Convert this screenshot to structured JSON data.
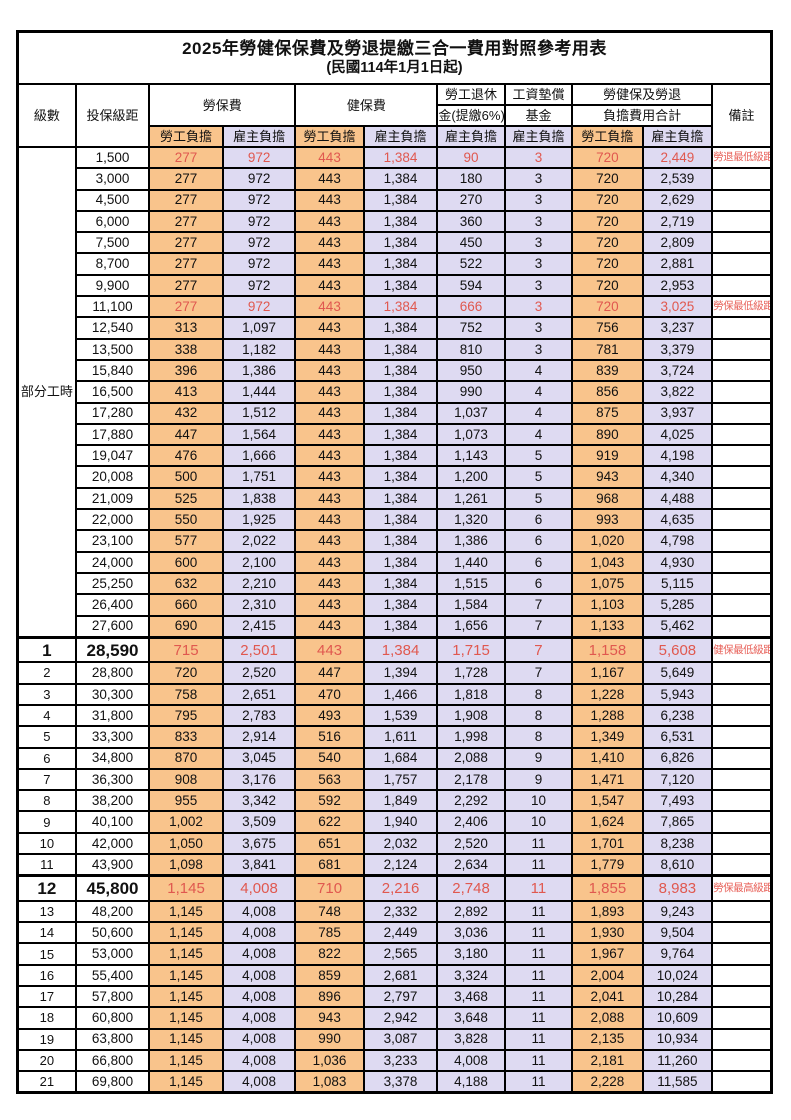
{
  "title": "2025年勞健保保費及勞退提繳三合一費用對照參考用表",
  "subtitle": "(民國114年1月1日起)",
  "columns": {
    "level": "級數",
    "salary": "投保級距",
    "labor_ins": "勞保費",
    "health_ins": "健保費",
    "pension_line1": "勞工退休",
    "pension_line2": "金(提繳6%)",
    "wage_fund_line1": "工資墊償",
    "wage_fund_line2": "基金",
    "total_line1": "勞健保及勞退",
    "total_line2": "負擔費用合計",
    "employee": "勞工負擔",
    "employer": "雇主負擔",
    "note": "備註"
  },
  "group_label": "部分工時",
  "group_span": 23,
  "colors": {
    "employee_bg": "#F9C48C",
    "employer_bg": "#DEDAF2",
    "highlight_text": "#E0584F",
    "note_text": "#E8625A",
    "border": "#000000"
  },
  "rows": [
    {
      "level": "",
      "salary": "1,500",
      "values": [
        "277",
        "972",
        "443",
        "1,384",
        "90",
        "3",
        "720",
        "2,449"
      ],
      "note": "勞退最低級距",
      "red": true,
      "big": false,
      "thick": false
    },
    {
      "level": "",
      "salary": "3,000",
      "values": [
        "277",
        "972",
        "443",
        "1,384",
        "180",
        "3",
        "720",
        "2,539"
      ],
      "note": "",
      "red": false,
      "big": false,
      "thick": false
    },
    {
      "level": "",
      "salary": "4,500",
      "values": [
        "277",
        "972",
        "443",
        "1,384",
        "270",
        "3",
        "720",
        "2,629"
      ],
      "note": "",
      "red": false,
      "big": false,
      "thick": false
    },
    {
      "level": "",
      "salary": "6,000",
      "values": [
        "277",
        "972",
        "443",
        "1,384",
        "360",
        "3",
        "720",
        "2,719"
      ],
      "note": "",
      "red": false,
      "big": false,
      "thick": false
    },
    {
      "level": "",
      "salary": "7,500",
      "values": [
        "277",
        "972",
        "443",
        "1,384",
        "450",
        "3",
        "720",
        "2,809"
      ],
      "note": "",
      "red": false,
      "big": false,
      "thick": false
    },
    {
      "level": "",
      "salary": "8,700",
      "values": [
        "277",
        "972",
        "443",
        "1,384",
        "522",
        "3",
        "720",
        "2,881"
      ],
      "note": "",
      "red": false,
      "big": false,
      "thick": false
    },
    {
      "level": "",
      "salary": "9,900",
      "values": [
        "277",
        "972",
        "443",
        "1,384",
        "594",
        "3",
        "720",
        "2,953"
      ],
      "note": "",
      "red": false,
      "big": false,
      "thick": false
    },
    {
      "level": "",
      "salary": "11,100",
      "values": [
        "277",
        "972",
        "443",
        "1,384",
        "666",
        "3",
        "720",
        "3,025"
      ],
      "note": "勞保最低級距",
      "red": true,
      "big": false,
      "thick": false
    },
    {
      "level": "",
      "salary": "12,540",
      "values": [
        "313",
        "1,097",
        "443",
        "1,384",
        "752",
        "3",
        "756",
        "3,237"
      ],
      "note": "",
      "red": false,
      "big": false,
      "thick": false
    },
    {
      "level": "",
      "salary": "13,500",
      "values": [
        "338",
        "1,182",
        "443",
        "1,384",
        "810",
        "3",
        "781",
        "3,379"
      ],
      "note": "",
      "red": false,
      "big": false,
      "thick": false
    },
    {
      "level": "",
      "salary": "15,840",
      "values": [
        "396",
        "1,386",
        "443",
        "1,384",
        "950",
        "4",
        "839",
        "3,724"
      ],
      "note": "",
      "red": false,
      "big": false,
      "thick": false
    },
    {
      "level": "",
      "salary": "16,500",
      "values": [
        "413",
        "1,444",
        "443",
        "1,384",
        "990",
        "4",
        "856",
        "3,822"
      ],
      "note": "",
      "red": false,
      "big": false,
      "thick": false
    },
    {
      "level": "",
      "salary": "17,280",
      "values": [
        "432",
        "1,512",
        "443",
        "1,384",
        "1,037",
        "4",
        "875",
        "3,937"
      ],
      "note": "",
      "red": false,
      "big": false,
      "thick": false
    },
    {
      "level": "",
      "salary": "17,880",
      "values": [
        "447",
        "1,564",
        "443",
        "1,384",
        "1,073",
        "4",
        "890",
        "4,025"
      ],
      "note": "",
      "red": false,
      "big": false,
      "thick": false
    },
    {
      "level": "",
      "salary": "19,047",
      "values": [
        "476",
        "1,666",
        "443",
        "1,384",
        "1,143",
        "5",
        "919",
        "4,198"
      ],
      "note": "",
      "red": false,
      "big": false,
      "thick": false
    },
    {
      "level": "",
      "salary": "20,008",
      "values": [
        "500",
        "1,751",
        "443",
        "1,384",
        "1,200",
        "5",
        "943",
        "4,340"
      ],
      "note": "",
      "red": false,
      "big": false,
      "thick": false
    },
    {
      "level": "",
      "salary": "21,009",
      "values": [
        "525",
        "1,838",
        "443",
        "1,384",
        "1,261",
        "5",
        "968",
        "4,488"
      ],
      "note": "",
      "red": false,
      "big": false,
      "thick": false
    },
    {
      "level": "",
      "salary": "22,000",
      "values": [
        "550",
        "1,925",
        "443",
        "1,384",
        "1,320",
        "6",
        "993",
        "4,635"
      ],
      "note": "",
      "red": false,
      "big": false,
      "thick": false
    },
    {
      "level": "",
      "salary": "23,100",
      "values": [
        "577",
        "2,022",
        "443",
        "1,384",
        "1,386",
        "6",
        "1,020",
        "4,798"
      ],
      "note": "",
      "red": false,
      "big": false,
      "thick": false
    },
    {
      "level": "",
      "salary": "24,000",
      "values": [
        "600",
        "2,100",
        "443",
        "1,384",
        "1,440",
        "6",
        "1,043",
        "4,930"
      ],
      "note": "",
      "red": false,
      "big": false,
      "thick": false
    },
    {
      "level": "",
      "salary": "25,250",
      "values": [
        "632",
        "2,210",
        "443",
        "1,384",
        "1,515",
        "6",
        "1,075",
        "5,115"
      ],
      "note": "",
      "red": false,
      "big": false,
      "thick": false
    },
    {
      "level": "",
      "salary": "26,400",
      "values": [
        "660",
        "2,310",
        "443",
        "1,384",
        "1,584",
        "7",
        "1,103",
        "5,285"
      ],
      "note": "",
      "red": false,
      "big": false,
      "thick": false
    },
    {
      "level": "",
      "salary": "27,600",
      "values": [
        "690",
        "2,415",
        "443",
        "1,384",
        "1,656",
        "7",
        "1,133",
        "5,462"
      ],
      "note": "",
      "red": false,
      "big": false,
      "thick": false
    },
    {
      "level": "1",
      "salary": "28,590",
      "values": [
        "715",
        "2,501",
        "443",
        "1,384",
        "1,715",
        "7",
        "1,158",
        "5,608"
      ],
      "note": "健保最低級距",
      "red": true,
      "big": true,
      "thick": true
    },
    {
      "level": "2",
      "salary": "28,800",
      "values": [
        "720",
        "2,520",
        "447",
        "1,394",
        "1,728",
        "7",
        "1,167",
        "5,649"
      ],
      "note": "",
      "red": false,
      "big": false,
      "thick": false
    },
    {
      "level": "3",
      "salary": "30,300",
      "values": [
        "758",
        "2,651",
        "470",
        "1,466",
        "1,818",
        "8",
        "1,228",
        "5,943"
      ],
      "note": "",
      "red": false,
      "big": false,
      "thick": false
    },
    {
      "level": "4",
      "salary": "31,800",
      "values": [
        "795",
        "2,783",
        "493",
        "1,539",
        "1,908",
        "8",
        "1,288",
        "6,238"
      ],
      "note": "",
      "red": false,
      "big": false,
      "thick": false
    },
    {
      "level": "5",
      "salary": "33,300",
      "values": [
        "833",
        "2,914",
        "516",
        "1,611",
        "1,998",
        "8",
        "1,349",
        "6,531"
      ],
      "note": "",
      "red": false,
      "big": false,
      "thick": false
    },
    {
      "level": "6",
      "salary": "34,800",
      "values": [
        "870",
        "3,045",
        "540",
        "1,684",
        "2,088",
        "9",
        "1,410",
        "6,826"
      ],
      "note": "",
      "red": false,
      "big": false,
      "thick": false
    },
    {
      "level": "7",
      "salary": "36,300",
      "values": [
        "908",
        "3,176",
        "563",
        "1,757",
        "2,178",
        "9",
        "1,471",
        "7,120"
      ],
      "note": "",
      "red": false,
      "big": false,
      "thick": false
    },
    {
      "level": "8",
      "salary": "38,200",
      "values": [
        "955",
        "3,342",
        "592",
        "1,849",
        "2,292",
        "10",
        "1,547",
        "7,493"
      ],
      "note": "",
      "red": false,
      "big": false,
      "thick": false
    },
    {
      "level": "9",
      "salary": "40,100",
      "values": [
        "1,002",
        "3,509",
        "622",
        "1,940",
        "2,406",
        "10",
        "1,624",
        "7,865"
      ],
      "note": "",
      "red": false,
      "big": false,
      "thick": false
    },
    {
      "level": "10",
      "salary": "42,000",
      "values": [
        "1,050",
        "3,675",
        "651",
        "2,032",
        "2,520",
        "11",
        "1,701",
        "8,238"
      ],
      "note": "",
      "red": false,
      "big": false,
      "thick": false
    },
    {
      "level": "11",
      "salary": "43,900",
      "values": [
        "1,098",
        "3,841",
        "681",
        "2,124",
        "2,634",
        "11",
        "1,779",
        "8,610"
      ],
      "note": "",
      "red": false,
      "big": false,
      "thick": false
    },
    {
      "level": "12",
      "salary": "45,800",
      "values": [
        "1,145",
        "4,008",
        "710",
        "2,216",
        "2,748",
        "11",
        "1,855",
        "8,983"
      ],
      "note": "勞保最高級距",
      "red": true,
      "big": true,
      "thick": true
    },
    {
      "level": "13",
      "salary": "48,200",
      "values": [
        "1,145",
        "4,008",
        "748",
        "2,332",
        "2,892",
        "11",
        "1,893",
        "9,243"
      ],
      "note": "",
      "red": false,
      "big": false,
      "thick": false
    },
    {
      "level": "14",
      "salary": "50,600",
      "values": [
        "1,145",
        "4,008",
        "785",
        "2,449",
        "3,036",
        "11",
        "1,930",
        "9,504"
      ],
      "note": "",
      "red": false,
      "big": false,
      "thick": false
    },
    {
      "level": "15",
      "salary": "53,000",
      "values": [
        "1,145",
        "4,008",
        "822",
        "2,565",
        "3,180",
        "11",
        "1,967",
        "9,764"
      ],
      "note": "",
      "red": false,
      "big": false,
      "thick": false
    },
    {
      "level": "16",
      "salary": "55,400",
      "values": [
        "1,145",
        "4,008",
        "859",
        "2,681",
        "3,324",
        "11",
        "2,004",
        "10,024"
      ],
      "note": "",
      "red": false,
      "big": false,
      "thick": false
    },
    {
      "level": "17",
      "salary": "57,800",
      "values": [
        "1,145",
        "4,008",
        "896",
        "2,797",
        "3,468",
        "11",
        "2,041",
        "10,284"
      ],
      "note": "",
      "red": false,
      "big": false,
      "thick": false
    },
    {
      "level": "18",
      "salary": "60,800",
      "values": [
        "1,145",
        "4,008",
        "943",
        "2,942",
        "3,648",
        "11",
        "2,088",
        "10,609"
      ],
      "note": "",
      "red": false,
      "big": false,
      "thick": false
    },
    {
      "level": "19",
      "salary": "63,800",
      "values": [
        "1,145",
        "4,008",
        "990",
        "3,087",
        "3,828",
        "11",
        "2,135",
        "10,934"
      ],
      "note": "",
      "red": false,
      "big": false,
      "thick": false
    },
    {
      "level": "20",
      "salary": "66,800",
      "values": [
        "1,145",
        "4,008",
        "1,036",
        "3,233",
        "4,008",
        "11",
        "2,181",
        "11,260"
      ],
      "note": "",
      "red": false,
      "big": false,
      "thick": false
    },
    {
      "level": "21",
      "salary": "69,800",
      "values": [
        "1,145",
        "4,008",
        "1,083",
        "3,378",
        "4,188",
        "11",
        "2,228",
        "11,585"
      ],
      "note": "",
      "red": false,
      "big": false,
      "thick": false
    }
  ]
}
